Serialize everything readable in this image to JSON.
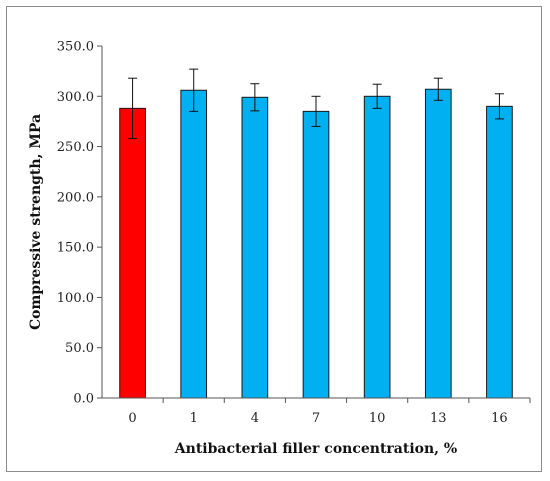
{
  "chart_data": {
    "type": "bar",
    "categories": [
      "0",
      "1",
      "4",
      "7",
      "10",
      "13",
      "16"
    ],
    "values": [
      288.0,
      306.0,
      299.0,
      285.0,
      300.0,
      307.0,
      290.0
    ],
    "errors": [
      30.0,
      21.0,
      13.5,
      15.0,
      12.0,
      11.0,
      12.5
    ],
    "bar_colors": [
      "#ff0000",
      "#00b0f0",
      "#00b0f0",
      "#00b0f0",
      "#00b0f0",
      "#00b0f0",
      "#00b0f0"
    ],
    "xlabel": "Antibacterial filler concentration, %",
    "ylabel": "Compressive strength, MPa",
    "ylim": [
      0,
      350
    ],
    "yticks": [
      "0.0",
      "50.0",
      "100.0",
      "150.0",
      "200.0",
      "250.0",
      "300.0",
      "350.0"
    ],
    "grid": false,
    "legend": "none"
  }
}
